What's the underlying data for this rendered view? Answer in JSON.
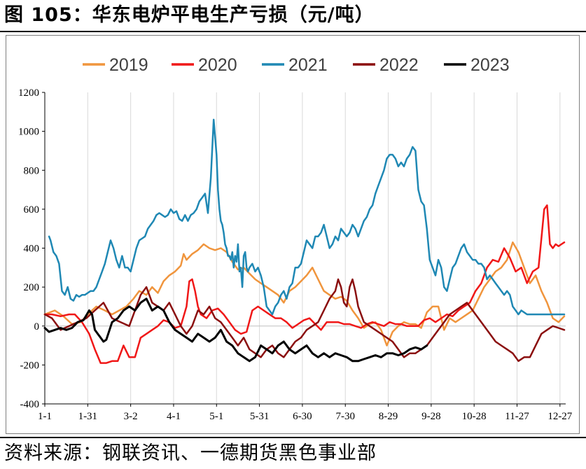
{
  "title": "图 105：华东电炉平电生产亏损（元/吨）",
  "source": "资料来源：钢联资讯、一德期货黑色事业部",
  "chart_data": {
    "type": "line",
    "ylim": [
      -400,
      1200
    ],
    "yticks": [
      -400,
      -200,
      0,
      200,
      400,
      600,
      800,
      1000,
      1200
    ],
    "xlim": [
      1,
      365
    ],
    "xticks": [
      {
        "day": 1,
        "label": "1-1"
      },
      {
        "day": 31,
        "label": "1-31"
      },
      {
        "day": 61,
        "label": "3-2"
      },
      {
        "day": 91,
        "label": "4-1"
      },
      {
        "day": 121,
        "label": "5-1"
      },
      {
        "day": 151,
        "label": "5-31"
      },
      {
        "day": 181,
        "label": "6-30"
      },
      {
        "day": 211,
        "label": "7-30"
      },
      {
        "day": 241,
        "label": "8-29"
      },
      {
        "day": 271,
        "label": "9-28"
      },
      {
        "day": 301,
        "label": "10-28"
      },
      {
        "day": 331,
        "label": "11-27"
      },
      {
        "day": 361,
        "label": "12-27"
      }
    ],
    "grid": "vertical",
    "legend": "top",
    "series": [
      {
        "name": "2019",
        "color": "#f0953d",
        "x": [
          1,
          8,
          14,
          20,
          26,
          31,
          37,
          43,
          48,
          53,
          58,
          63,
          67,
          72,
          76,
          80,
          84,
          88,
          92,
          96,
          98,
          100,
          104,
          108,
          112,
          116,
          120,
          124,
          128,
          132,
          136,
          140,
          144,
          148,
          152,
          156,
          160,
          164,
          168,
          172,
          176,
          180,
          184,
          188,
          192,
          196,
          200,
          204,
          208,
          212,
          216,
          220,
          224,
          228,
          232,
          236,
          240,
          244,
          248,
          252,
          256,
          260,
          264,
          268,
          272,
          276,
          280,
          284,
          288,
          292,
          296,
          300,
          304,
          308,
          312,
          316,
          320,
          324,
          328,
          332,
          336,
          340,
          344,
          348,
          352,
          356,
          360,
          364
        ],
        "y": [
          60,
          80,
          50,
          10,
          20,
          60,
          100,
          80,
          60,
          80,
          100,
          140,
          180,
          160,
          200,
          170,
          230,
          260,
          280,
          310,
          370,
          340,
          370,
          390,
          420,
          400,
          390,
          400,
          380,
          330,
          290,
          300,
          270,
          240,
          220,
          200,
          180,
          160,
          120,
          180,
          200,
          230,
          260,
          300,
          240,
          180,
          160,
          140,
          150,
          130,
          80,
          40,
          -10,
          10,
          20,
          -20,
          -100,
          -30,
          0,
          20,
          10,
          10,
          -10,
          70,
          100,
          100,
          -20,
          40,
          20,
          40,
          60,
          80,
          140,
          200,
          240,
          280,
          300,
          340,
          430,
          380,
          300,
          220,
          260,
          180,
          120,
          40,
          20,
          50
        ]
      },
      {
        "name": "2020",
        "color": "#f01818",
        "x": [
          1,
          6,
          12,
          18,
          22,
          27,
          32,
          36,
          40,
          44,
          48,
          52,
          56,
          60,
          64,
          68,
          72,
          76,
          80,
          84,
          88,
          92,
          96,
          100,
          102,
          104,
          106,
          108,
          110,
          114,
          118,
          122,
          126,
          130,
          134,
          138,
          142,
          146,
          150,
          154,
          158,
          162,
          166,
          170,
          174,
          178,
          182,
          186,
          190,
          194,
          198,
          202,
          206,
          210,
          214,
          218,
          222,
          226,
          230,
          234,
          238,
          242,
          246,
          250,
          254,
          258,
          262,
          266,
          270,
          274,
          278,
          282,
          286,
          290,
          294,
          298,
          302,
          306,
          310,
          314,
          318,
          322,
          326,
          330,
          334,
          338,
          342,
          346,
          348,
          350,
          352,
          354,
          356,
          358,
          360,
          362,
          364
        ],
        "y": [
          60,
          60,
          50,
          60,
          60,
          20,
          -40,
          -120,
          -190,
          -190,
          -180,
          -180,
          -100,
          -160,
          -160,
          -60,
          -40,
          -20,
          0,
          30,
          20,
          -10,
          0,
          100,
          230,
          240,
          180,
          100,
          60,
          40,
          80,
          90,
          60,
          20,
          -20,
          -40,
          -30,
          80,
          100,
          80,
          60,
          40,
          40,
          20,
          -10,
          10,
          30,
          40,
          10,
          -20,
          20,
          20,
          20,
          10,
          10,
          0,
          -10,
          10,
          20,
          10,
          0,
          20,
          10,
          10,
          0,
          0,
          0,
          30,
          40,
          20,
          40,
          60,
          50,
          80,
          100,
          120,
          180,
          220,
          300,
          340,
          330,
          400,
          350,
          280,
          300,
          220,
          280,
          300,
          450,
          600,
          620,
          420,
          400,
          420,
          410,
          420,
          430
        ]
      },
      {
        "name": "2021",
        "color": "#1f88b4",
        "x": [
          4,
          5,
          7,
          9,
          11,
          13,
          15,
          17,
          19,
          21,
          23,
          25,
          27,
          29,
          31,
          33,
          35,
          37,
          39,
          41,
          43,
          45,
          47,
          49,
          51,
          53,
          55,
          57,
          59,
          61,
          63,
          65,
          67,
          69,
          71,
          73,
          75,
          77,
          79,
          81,
          83,
          85,
          87,
          89,
          91,
          93,
          95,
          97,
          99,
          101,
          103,
          105,
          107,
          109,
          111,
          113,
          115,
          117,
          119,
          121,
          122,
          123,
          124,
          125,
          126,
          127,
          128,
          129,
          130,
          131,
          132,
          133,
          134,
          135,
          136,
          137,
          138,
          139,
          140,
          141,
          142,
          143,
          144,
          146,
          148,
          150,
          152,
          154,
          156,
          158,
          160,
          162,
          164,
          166,
          168,
          170,
          172,
          174,
          176,
          178,
          180,
          182,
          184,
          186,
          188,
          190,
          192,
          194,
          196,
          198,
          200,
          202,
          204,
          206,
          208,
          210,
          212,
          214,
          216,
          218,
          220,
          222,
          224,
          226,
          228,
          230,
          232,
          234,
          236,
          238,
          240,
          242,
          244,
          246,
          248,
          250,
          252,
          254,
          256,
          258,
          260,
          262,
          264,
          266,
          268,
          270,
          272,
          274,
          276,
          278,
          280,
          282,
          284,
          286,
          288,
          290,
          292,
          294,
          296,
          298,
          300,
          302,
          304,
          306,
          308,
          310,
          312,
          314,
          316,
          318,
          320,
          322,
          324,
          326,
          328,
          330,
          332,
          334,
          336,
          338,
          340,
          342,
          344,
          346,
          348,
          350,
          352,
          354,
          356,
          358,
          360,
          362,
          364
        ],
        "y": [
          460,
          440,
          380,
          360,
          320,
          180,
          160,
          200,
          140,
          130,
          160,
          150,
          160,
          160,
          170,
          180,
          180,
          200,
          240,
          280,
          320,
          380,
          440,
          400,
          340,
          300,
          360,
          300,
          300,
          280,
          340,
          400,
          440,
          450,
          460,
          500,
          520,
          540,
          570,
          580,
          570,
          560,
          570,
          600,
          580,
          590,
          550,
          540,
          570,
          540,
          570,
          580,
          600,
          640,
          660,
          680,
          580,
          760,
          1060,
          880,
          700,
          600,
          540,
          520,
          480,
          420,
          400,
          360,
          360,
          340,
          380,
          300,
          360,
          330,
          420,
          280,
          300,
          200,
          360,
          380,
          300,
          280,
          300,
          320,
          280,
          300,
          260,
          200,
          100,
          80,
          60,
          100,
          120,
          160,
          180,
          140,
          200,
          220,
          300,
          300,
          320,
          380,
          440,
          420,
          400,
          460,
          460,
          480,
          520,
          460,
          400,
          420,
          460,
          440,
          500,
          480,
          460,
          480,
          520,
          500,
          460,
          500,
          540,
          560,
          600,
          620,
          680,
          720,
          760,
          800,
          860,
          880,
          880,
          860,
          820,
          840,
          820,
          860,
          880,
          920,
          900,
          700,
          640,
          620,
          500,
          340,
          300,
          260,
          340,
          300,
          200,
          180,
          240,
          300,
          320,
          360,
          400,
          420,
          380,
          360,
          340,
          340,
          320,
          320,
          300,
          240,
          260,
          240,
          220,
          200,
          180,
          160,
          180,
          160,
          100,
          80,
          60,
          80,
          70,
          60,
          60,
          60,
          60,
          60,
          60,
          60,
          60,
          60,
          60,
          60,
          60,
          60,
          60
        ]
      },
      {
        "name": "2022",
        "color": "#8b0f0f",
        "x": [
          1,
          6,
          12,
          18,
          24,
          30,
          36,
          42,
          48,
          54,
          60,
          64,
          68,
          72,
          76,
          80,
          84,
          88,
          92,
          96,
          100,
          104,
          108,
          112,
          116,
          120,
          124,
          128,
          132,
          136,
          140,
          144,
          148,
          152,
          156,
          160,
          164,
          168,
          172,
          176,
          180,
          184,
          188,
          192,
          196,
          200,
          204,
          206,
          208,
          210,
          212,
          214,
          216,
          218,
          220,
          222,
          224,
          228,
          232,
          236,
          240,
          244,
          248,
          252,
          256,
          260,
          264,
          268,
          272,
          276,
          280,
          284,
          288,
          292,
          296,
          300,
          304,
          308,
          312,
          316,
          320,
          324,
          328,
          332,
          336,
          340,
          344,
          348,
          352,
          356,
          360,
          364
        ],
        "y": [
          60,
          40,
          -20,
          0,
          20,
          40,
          80,
          120,
          40,
          20,
          0,
          80,
          160,
          200,
          120,
          100,
          80,
          120,
          60,
          0,
          -40,
          0,
          80,
          60,
          100,
          40,
          20,
          -20,
          -60,
          -100,
          -60,
          -120,
          -140,
          -160,
          -120,
          -100,
          -140,
          -160,
          -120,
          -80,
          -60,
          -20,
          0,
          20,
          80,
          140,
          180,
          240,
          200,
          120,
          100,
          200,
          240,
          180,
          100,
          60,
          20,
          0,
          -20,
          -40,
          -60,
          -80,
          -120,
          -160,
          -140,
          -140,
          -120,
          -100,
          -60,
          -20,
          20,
          60,
          80,
          100,
          120,
          80,
          40,
          0,
          -40,
          -80,
          -100,
          -120,
          -140,
          -180,
          -160,
          -160,
          -100,
          -40,
          -20,
          0,
          -10,
          -20
        ]
      },
      {
        "name": "2023",
        "color": "#000000",
        "x": [
          1,
          4,
          8,
          12,
          16,
          20,
          24,
          28,
          32,
          34,
          36,
          38,
          40,
          42,
          44,
          48,
          52,
          56,
          60,
          64,
          68,
          72,
          76,
          80,
          84,
          88,
          92,
          96,
          100,
          104,
          108,
          112,
          116,
          120,
          124,
          128,
          132,
          136,
          140,
          144,
          148,
          152,
          156,
          160,
          164,
          168,
          172,
          176,
          180,
          184,
          188,
          192,
          196,
          200,
          204,
          208,
          212,
          216,
          220,
          224,
          228,
          232,
          236,
          240,
          244,
          248,
          252,
          256,
          260,
          264,
          268
        ],
        "y": [
          -10,
          -30,
          -20,
          -10,
          -20,
          -10,
          20,
          30,
          80,
          60,
          -20,
          -40,
          -60,
          -80,
          -70,
          20,
          40,
          80,
          100,
          80,
          120,
          140,
          80,
          100,
          80,
          20,
          -20,
          -40,
          -60,
          -80,
          -40,
          -60,
          -80,
          -60,
          -20,
          -80,
          -100,
          -140,
          -160,
          -180,
          -160,
          -100,
          -120,
          -140,
          -100,
          -80,
          -120,
          -140,
          -120,
          -100,
          -140,
          -160,
          -140,
          -160,
          -140,
          -150,
          -160,
          -180,
          -180,
          -170,
          -160,
          -150,
          -160,
          -140,
          -140,
          -150,
          -140,
          -120,
          -110,
          -120,
          -100
        ]
      }
    ]
  }
}
